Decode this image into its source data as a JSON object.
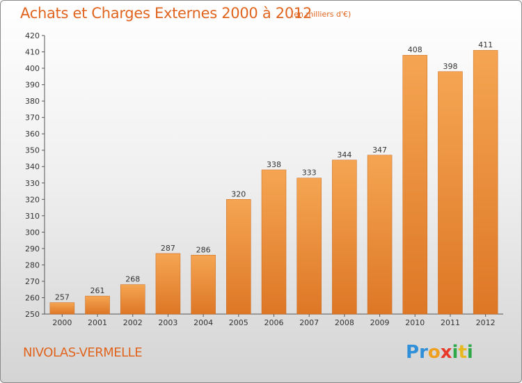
{
  "header": {
    "title": "Achats et Charges Externes 2000 à 2012",
    "subtitle": "(en milliers d'€)"
  },
  "footer": {
    "place": "NIVOLAS-VERMELLE",
    "logo_text": "Proxiti",
    "logo_letters": [
      {
        "ch": "P",
        "color": "#2f8fd8"
      },
      {
        "ch": "r",
        "color": "#2f8fd8"
      },
      {
        "ch": "o",
        "color": "#f0a020"
      },
      {
        "ch": "x",
        "color": "#e83a2a"
      },
      {
        "ch": "i",
        "color": "#2fa84a"
      },
      {
        "ch": "t",
        "color": "#e8b820"
      },
      {
        "ch": "i",
        "color": "#2fa84a"
      }
    ]
  },
  "colors": {
    "bar_top": "#f5a552",
    "bar_bottom": "#dd7726",
    "bar_edge": "#c9681c",
    "text": "#333333",
    "accent": "#e0641e"
  },
  "chart_data": {
    "type": "bar",
    "title": "Achats et Charges Externes 2000 à 2012",
    "subtitle": "(en milliers d'€)",
    "categories": [
      "2000",
      "2001",
      "2002",
      "2003",
      "2004",
      "2005",
      "2006",
      "2007",
      "2008",
      "2009",
      "2010",
      "2011",
      "2012"
    ],
    "values": [
      257,
      261,
      268,
      287,
      286,
      320,
      338,
      333,
      344,
      347,
      408,
      398,
      411
    ],
    "ylim": [
      250,
      420
    ],
    "yticks": [
      250,
      260,
      270,
      280,
      290,
      300,
      310,
      320,
      330,
      340,
      350,
      360,
      370,
      380,
      390,
      400,
      410,
      420
    ],
    "xlabel": "",
    "ylabel": "",
    "grid": false,
    "data_labels": true
  }
}
